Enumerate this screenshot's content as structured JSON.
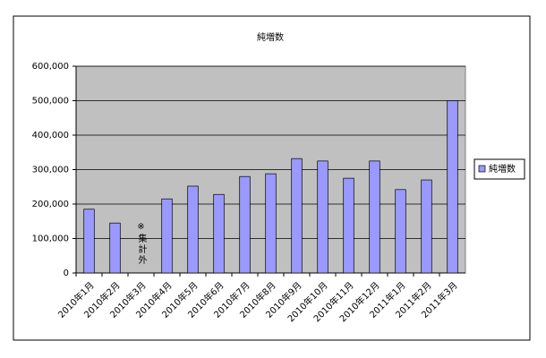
{
  "chart_data": {
    "type": "bar",
    "title": "純増数",
    "categories": [
      "2010年1月",
      "2010年2月",
      "2010年3月",
      "2010年4月",
      "2010年5月",
      "2010年6月",
      "2010年7月",
      "2010年8月",
      "2010年9月",
      "2010年10月",
      "2010年11月",
      "2010年12月",
      "2011年1月",
      "2011年2月",
      "2011年3月"
    ],
    "series": [
      {
        "name": "純増数",
        "color": "#9999ff",
        "values": [
          185000,
          145000,
          null,
          215000,
          252000,
          228000,
          280000,
          288000,
          332000,
          325000,
          275000,
          325000,
          242000,
          270000,
          500000
        ]
      }
    ],
    "ylim": [
      0,
      600000
    ],
    "yticks": [
      0,
      {
        "value": 100000,
        "label": "100,000"
      },
      {
        "value": 200000,
        "label": "200,000"
      },
      {
        "value": 300000,
        "label": "300,000"
      },
      {
        "value": 400000,
        "label": "400,000"
      },
      {
        "value": 500000,
        "label": "500,000"
      },
      {
        "value": 600000,
        "label": "600,000"
      }
    ],
    "grid": true,
    "legend": "right",
    "annotations": [
      "※集計外"
    ]
  }
}
